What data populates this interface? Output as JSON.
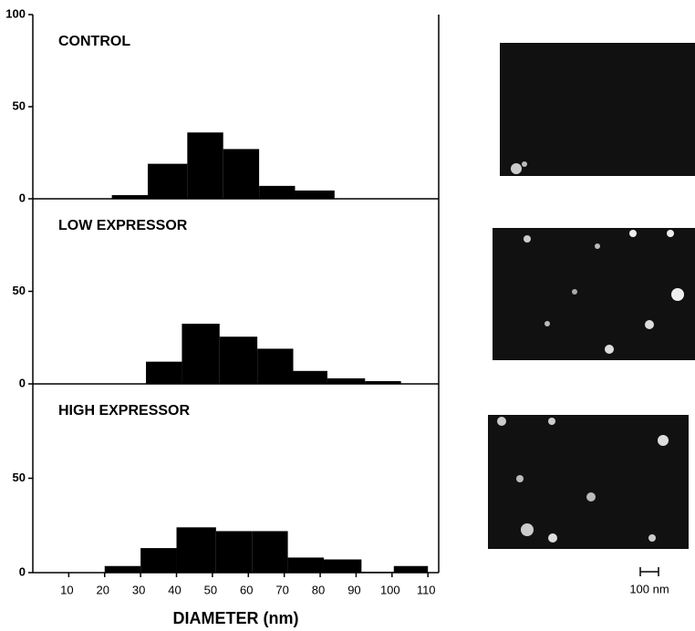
{
  "chart_data": [
    {
      "type": "histogram",
      "title": "CONTROL",
      "color": "#000000",
      "bins": [
        22,
        32,
        43,
        53,
        63,
        73,
        84
      ],
      "values": [
        2,
        19,
        36,
        27,
        7,
        4.5
      ],
      "xlim": [
        0,
        113
      ],
      "ylim": [
        0,
        100
      ],
      "yticks": [
        0,
        50,
        100
      ]
    },
    {
      "type": "histogram",
      "title": "LOW EXPRESSOR",
      "color": "#000000",
      "bins": [
        31.5,
        41.5,
        52,
        62.5,
        72.5,
        82,
        92.5,
        102.5
      ],
      "values": [
        12,
        32.5,
        25.5,
        19,
        7,
        3,
        1.5
      ],
      "xlim": [
        0,
        113
      ],
      "ylim": [
        0,
        100
      ],
      "yticks": [
        0,
        50
      ]
    },
    {
      "type": "histogram",
      "title": "HIGH EXPRESSOR",
      "color": "#000000",
      "bins": [
        20,
        30,
        40,
        51,
        61,
        71,
        81,
        91.5,
        100.5,
        110
      ],
      "values": [
        3.5,
        13,
        24,
        22,
        22,
        8,
        7,
        0.5,
        3.5
      ],
      "xlim": [
        0,
        113
      ],
      "ylim": [
        0,
        100
      ],
      "yticks": [
        0,
        50
      ],
      "xticks": [
        10,
        20,
        30,
        40,
        50,
        60,
        70,
        80,
        90,
        100,
        110
      ],
      "x_label": "DIAMETER (nm)"
    }
  ],
  "scale_bar_label": "100 nm"
}
